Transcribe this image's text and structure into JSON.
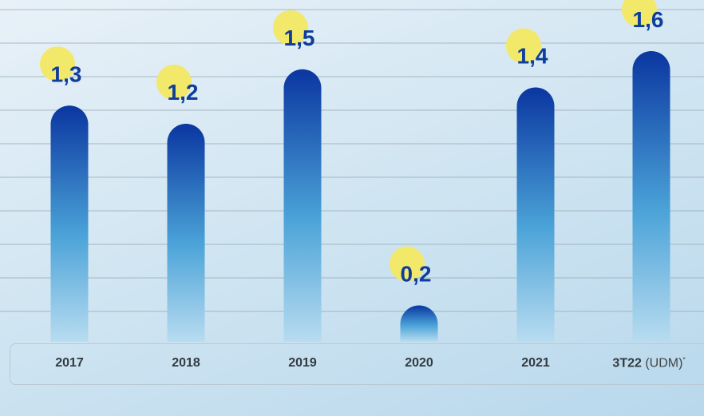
{
  "chart_data": {
    "type": "bar",
    "categories": [
      "2017",
      "2018",
      "2019",
      "2020",
      "2021",
      "3T22 (UDM)*"
    ],
    "category_labels": [
      {
        "main": "2017",
        "suffix": "",
        "note": ""
      },
      {
        "main": "2018",
        "suffix": "",
        "note": ""
      },
      {
        "main": "2019",
        "suffix": "",
        "note": ""
      },
      {
        "main": "2020",
        "suffix": "",
        "note": ""
      },
      {
        "main": "2021",
        "suffix": "",
        "note": ""
      },
      {
        "main": "3T22",
        "suffix": "(UDM)",
        "note": "*"
      }
    ],
    "values": [
      1.3,
      1.2,
      1.5,
      0.2,
      1.4,
      1.6
    ],
    "data_labels": [
      "1,3",
      "1,2",
      "1,5",
      "0,2",
      "1,4",
      "1,6"
    ],
    "grid": true,
    "colors": {
      "bar_top": "#0a36a0",
      "bar_mid": "#4ba3d8",
      "bar_bottom": "#b8dcf0",
      "label_text": "#0e3d9c",
      "label_dot": "#f2e86a",
      "grid": "#9aaab6",
      "axis_text": "#333a40"
    }
  }
}
